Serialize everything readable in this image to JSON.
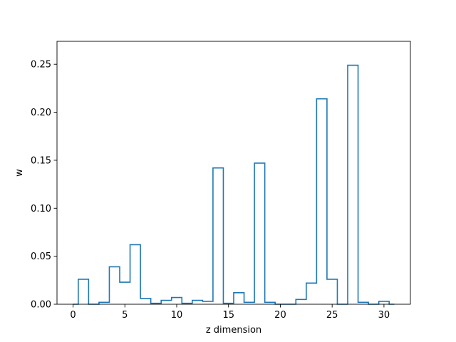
{
  "chart_data": {
    "type": "bar",
    "style": "step-histogram",
    "title": "",
    "xlabel": "z dimension",
    "ylabel": "w",
    "xlim": [
      -1.55,
      32.55
    ],
    "ylim": [
      0,
      0.2739
    ],
    "grid": false,
    "legend": "none",
    "series_color": "#1f77b4",
    "x_ticks": [
      0,
      5,
      10,
      15,
      20,
      25,
      30
    ],
    "x_tick_labels": [
      "0",
      "5",
      "10",
      "15",
      "20",
      "25",
      "30"
    ],
    "y_ticks": [
      0.0,
      0.05,
      0.1,
      0.15,
      0.2,
      0.25
    ],
    "y_tick_labels": [
      "0.00",
      "0.05",
      "0.10",
      "0.15",
      "0.20",
      "0.25"
    ],
    "bins": [
      {
        "x0": 0,
        "x1": 0.5,
        "value": 0.0
      },
      {
        "x0": 0.5,
        "x1": 1.5,
        "value": 0.026
      },
      {
        "x0": 1.5,
        "x1": 2.5,
        "value": 0.0
      },
      {
        "x0": 2.5,
        "x1": 3.5,
        "value": 0.002
      },
      {
        "x0": 3.5,
        "x1": 4.5,
        "value": 0.039
      },
      {
        "x0": 4.5,
        "x1": 5.5,
        "value": 0.023
      },
      {
        "x0": 5.5,
        "x1": 6.5,
        "value": 0.062
      },
      {
        "x0": 6.5,
        "x1": 7.5,
        "value": 0.006
      },
      {
        "x0": 7.5,
        "x1": 8.5,
        "value": 0.001
      },
      {
        "x0": 8.5,
        "x1": 9.5,
        "value": 0.004
      },
      {
        "x0": 9.5,
        "x1": 10.5,
        "value": 0.007
      },
      {
        "x0": 10.5,
        "x1": 11.5,
        "value": 0.001
      },
      {
        "x0": 11.5,
        "x1": 12.5,
        "value": 0.004
      },
      {
        "x0": 12.5,
        "x1": 13.5,
        "value": 0.003
      },
      {
        "x0": 13.5,
        "x1": 14.5,
        "value": 0.142
      },
      {
        "x0": 14.5,
        "x1": 15.5,
        "value": 0.001
      },
      {
        "x0": 15.5,
        "x1": 16.5,
        "value": 0.012
      },
      {
        "x0": 16.5,
        "x1": 17.5,
        "value": 0.002
      },
      {
        "x0": 17.5,
        "x1": 18.5,
        "value": 0.147
      },
      {
        "x0": 18.5,
        "x1": 19.5,
        "value": 0.002
      },
      {
        "x0": 19.5,
        "x1": 20.5,
        "value": 0.0
      },
      {
        "x0": 20.5,
        "x1": 21.5,
        "value": 0.0
      },
      {
        "x0": 21.5,
        "x1": 22.5,
        "value": 0.005
      },
      {
        "x0": 22.5,
        "x1": 23.5,
        "value": 0.022
      },
      {
        "x0": 23.5,
        "x1": 24.5,
        "value": 0.214
      },
      {
        "x0": 24.5,
        "x1": 25.5,
        "value": 0.026
      },
      {
        "x0": 25.5,
        "x1": 26.5,
        "value": 0.0
      },
      {
        "x0": 26.5,
        "x1": 27.5,
        "value": 0.249
      },
      {
        "x0": 27.5,
        "x1": 28.5,
        "value": 0.002
      },
      {
        "x0": 28.5,
        "x1": 29.5,
        "value": 0.0
      },
      {
        "x0": 29.5,
        "x1": 30.5,
        "value": 0.003
      },
      {
        "x0": 30.5,
        "x1": 31,
        "value": 0.0
      }
    ]
  }
}
